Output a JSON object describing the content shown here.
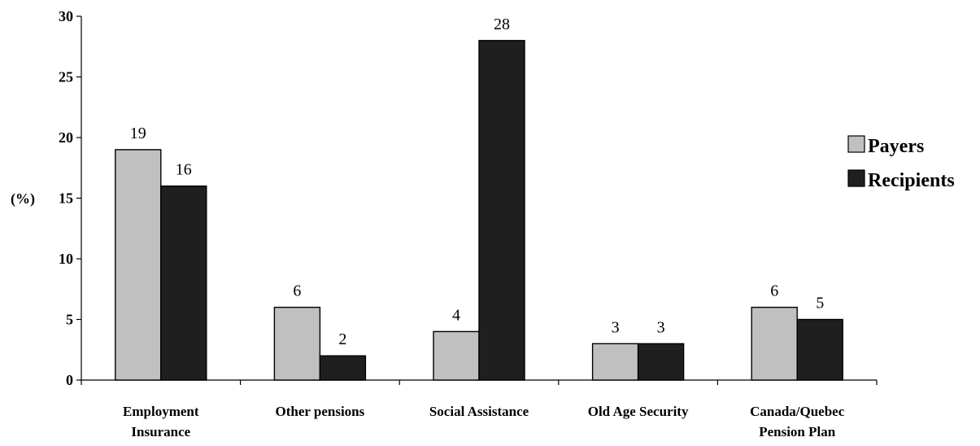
{
  "chart_data": {
    "type": "bar",
    "title": "",
    "xlabel": "",
    "ylabel": "(%)",
    "ylim": [
      0,
      30
    ],
    "yticks": [
      0,
      5,
      10,
      15,
      20,
      25,
      30
    ],
    "categories": [
      [
        "Employment",
        "Insurance"
      ],
      [
        "Other pensions"
      ],
      [
        "Social Assistance"
      ],
      [
        "Old Age Security"
      ],
      [
        "Canada/Quebec",
        "Pension Plan"
      ]
    ],
    "series": [
      {
        "name": "Payers",
        "color": "#c0c0c0",
        "values": [
          19,
          6,
          4,
          3,
          6
        ]
      },
      {
        "name": "Recipients",
        "color": "#1f1f1f",
        "values": [
          16,
          2,
          28,
          3,
          5
        ]
      }
    ],
    "grid": false,
    "legend_position": "right",
    "data_labels": true
  }
}
